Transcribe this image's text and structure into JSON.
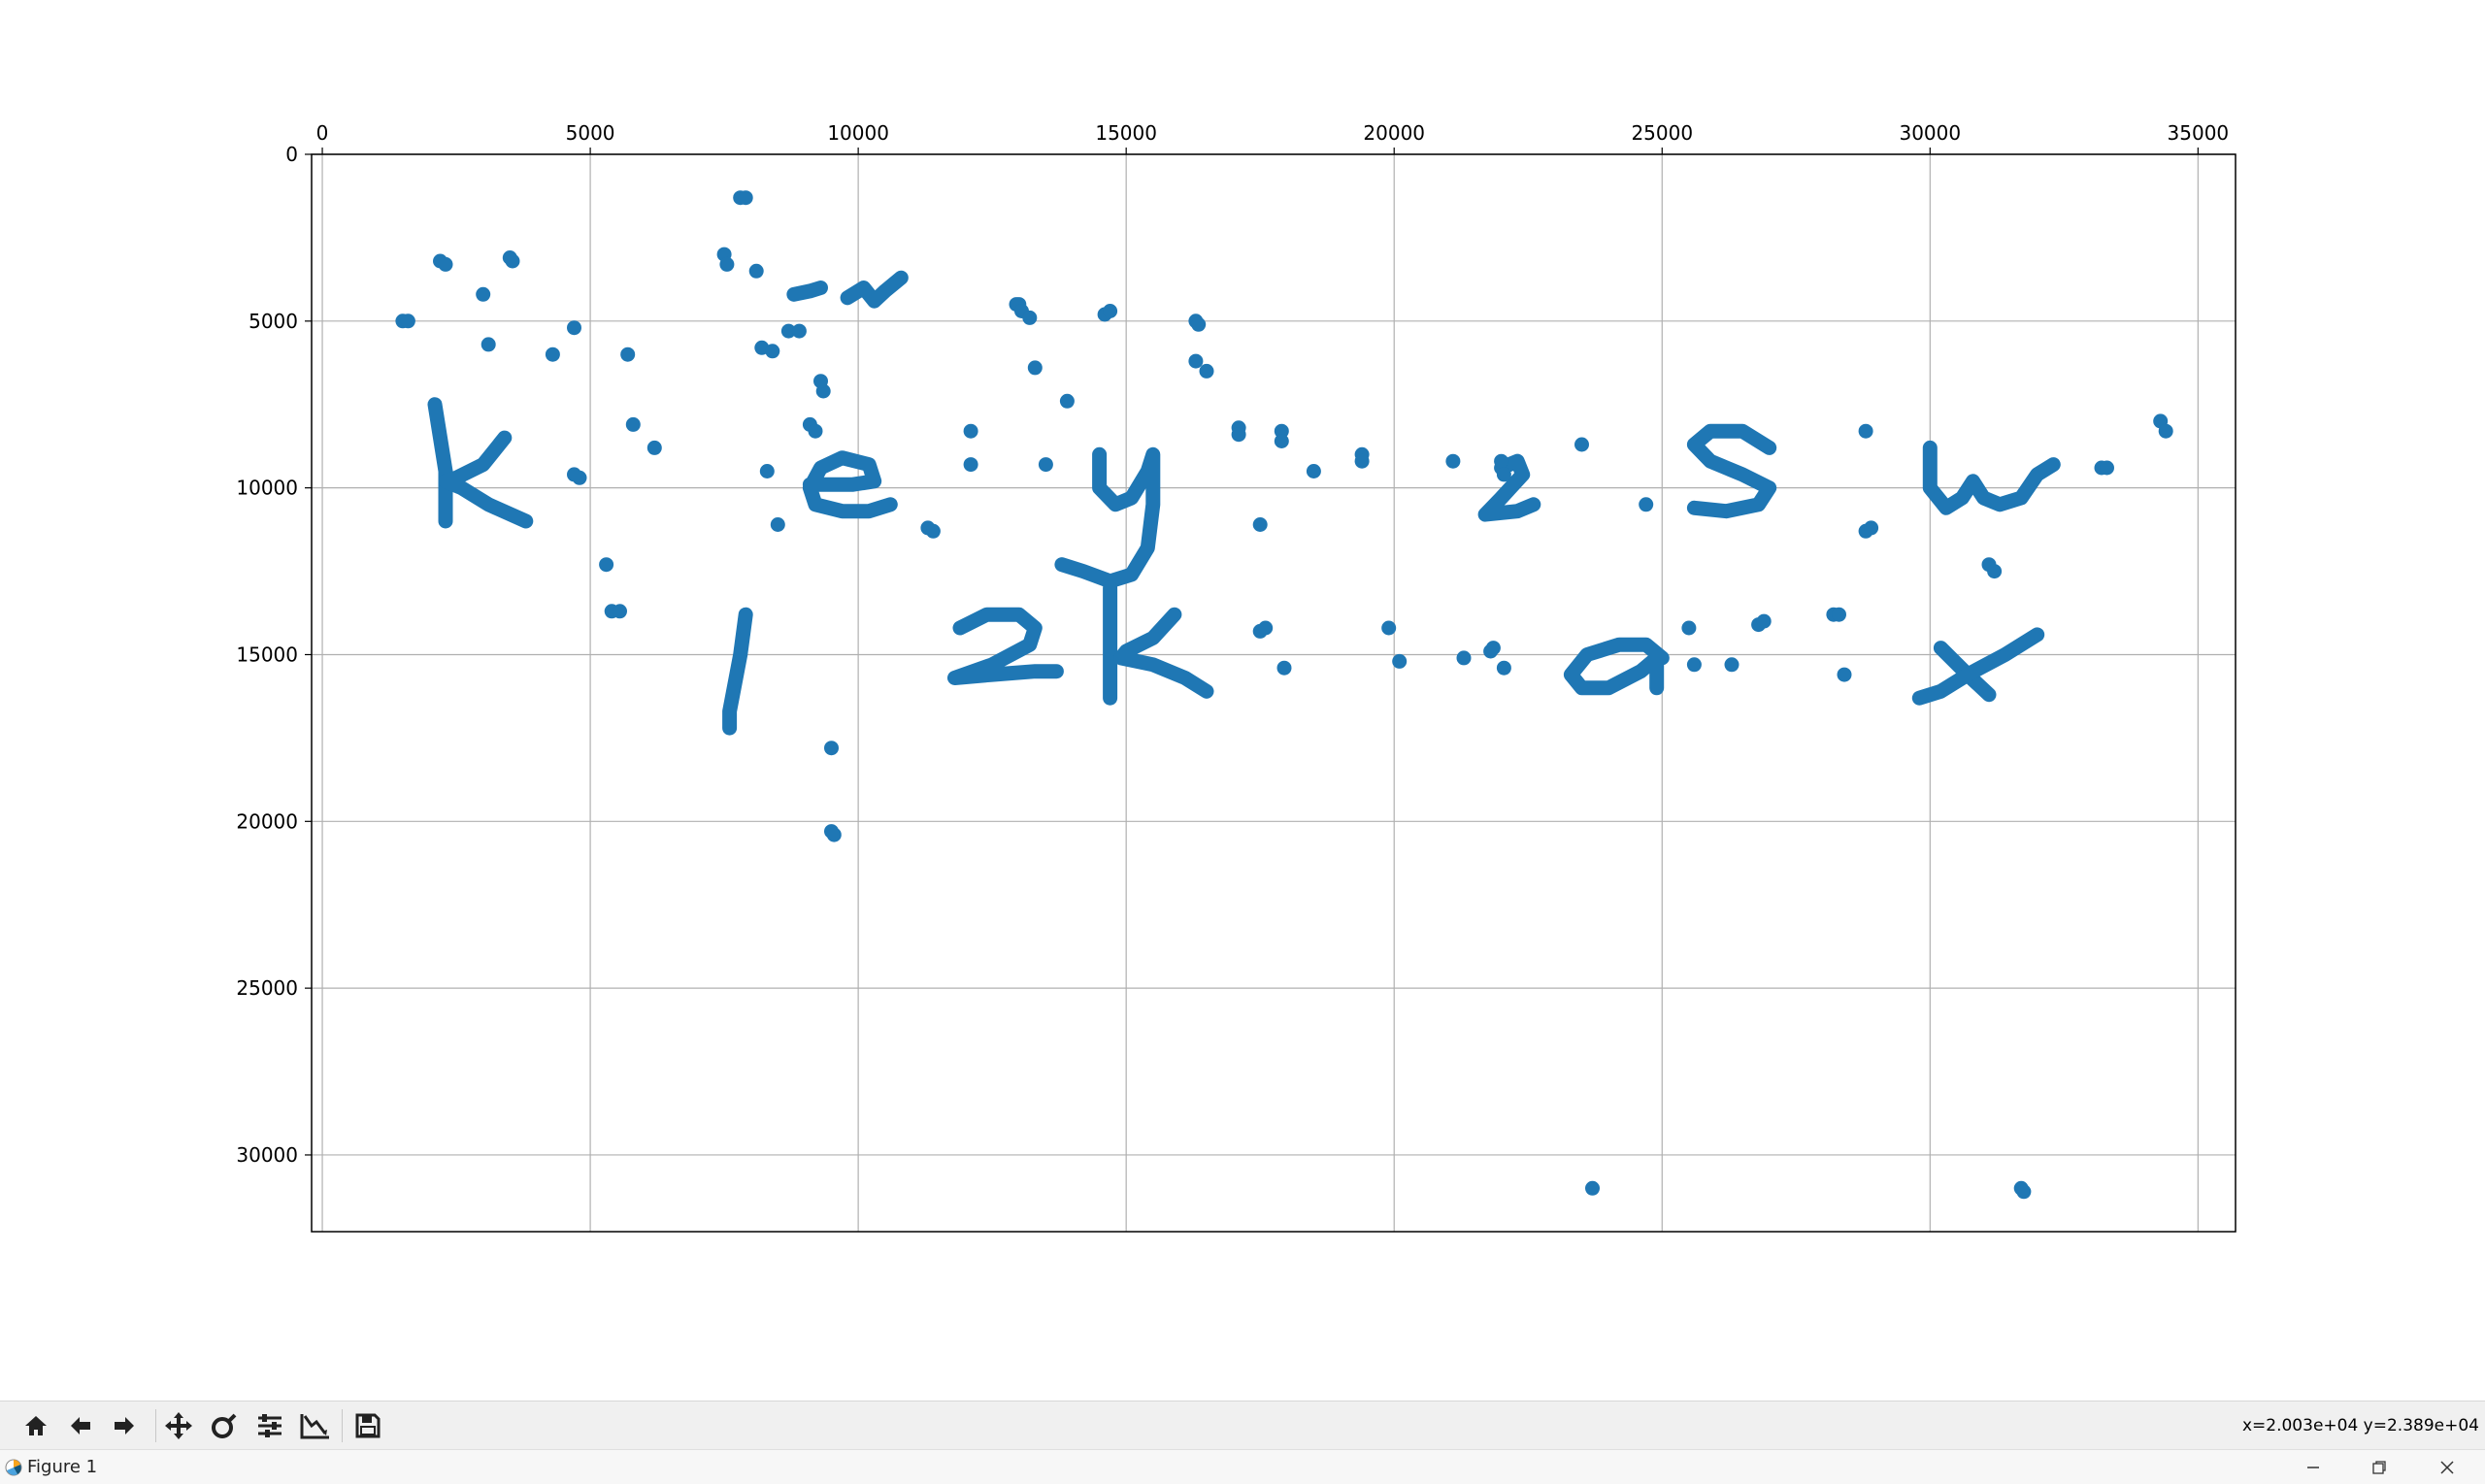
{
  "window": {
    "title": "Figure 1",
    "app_icon": "matplotlib-icon",
    "controls": {
      "minimize_icon": "minimize-icon",
      "restore_icon": "restore-icon",
      "close_icon": "close-icon"
    }
  },
  "toolbar": {
    "buttons": [
      {
        "name": "home-button",
        "icon": "home-icon"
      },
      {
        "name": "back-button",
        "icon": "arrow-left-icon"
      },
      {
        "name": "forward-button",
        "icon": "arrow-right-icon"
      },
      {
        "name": "pan-button",
        "icon": "move-icon"
      },
      {
        "name": "zoom-button",
        "icon": "zoom-icon"
      },
      {
        "name": "subplots-button",
        "icon": "sliders-icon"
      },
      {
        "name": "customize-button",
        "icon": "axes-edit-icon"
      },
      {
        "name": "save-button",
        "icon": "floppy-disk-icon"
      }
    ],
    "coordinates": "x=2.003e+04  y=2.389e+04"
  },
  "colors": {
    "marker": "#1f77b4",
    "grid": "#b0b0b0",
    "axes": "#000000",
    "toolbar_bg": "#f0f0f0"
  },
  "chart_data": {
    "type": "scatter",
    "title": "",
    "xlabel": "",
    "ylabel": "",
    "xlim": [
      -200,
      35700
    ],
    "ylim": [
      32300,
      0
    ],
    "y_inverted": true,
    "x_axis_position": "top",
    "grid": true,
    "xticks": [
      0,
      5000,
      10000,
      15000,
      20000,
      25000,
      30000,
      35000
    ],
    "xtick_labels": [
      "0",
      "5000",
      "10000",
      "15000",
      "20000",
      "25000",
      "30000",
      "35000"
    ],
    "yticks": [
      0,
      5000,
      10000,
      15000,
      20000,
      25000,
      30000
    ],
    "ytick_labels": [
      "0",
      "5000",
      "10000",
      "15000",
      "20000",
      "25000",
      "30000"
    ],
    "series": [
      {
        "marker_color": "#1f77b4",
        "points": [
          [
            1500,
            5000
          ],
          [
            1600,
            5000
          ],
          [
            2200,
            3200
          ],
          [
            2300,
            3300
          ],
          [
            3000,
            4200
          ],
          [
            3100,
            5700
          ],
          [
            3500,
            3100
          ],
          [
            3550,
            3200
          ],
          [
            4300,
            6000
          ],
          [
            4700,
            5200
          ],
          [
            4800,
            9700
          ],
          [
            4700,
            9600
          ],
          [
            5700,
            6000
          ],
          [
            5800,
            8100
          ],
          [
            6200,
            8800
          ],
          [
            5300,
            12300
          ],
          [
            5400,
            13700
          ],
          [
            5550,
            13700
          ],
          [
            7500,
            3000
          ],
          [
            7550,
            3300
          ],
          [
            7800,
            1300
          ],
          [
            7900,
            1300
          ],
          [
            8100,
            3500
          ],
          [
            8200,
            5800
          ],
          [
            8300,
            9500
          ],
          [
            8500,
            11100
          ],
          [
            8400,
            5900
          ],
          [
            8700,
            5300
          ],
          [
            8900,
            5300
          ],
          [
            9100,
            8100
          ],
          [
            9200,
            8300
          ],
          [
            9350,
            7100
          ],
          [
            9300,
            6800
          ],
          [
            9500,
            20300
          ],
          [
            9550,
            20400
          ],
          [
            9500,
            17800
          ],
          [
            11300,
            11200
          ],
          [
            11400,
            11300
          ],
          [
            12100,
            8300
          ],
          [
            12100,
            9300
          ],
          [
            12950,
            4500
          ],
          [
            13000,
            4500
          ],
          [
            13050,
            4700
          ],
          [
            13200,
            4900
          ],
          [
            13300,
            6400
          ],
          [
            13500,
            9300
          ],
          [
            13900,
            7400
          ],
          [
            14600,
            4800
          ],
          [
            14700,
            4700
          ],
          [
            16300,
            5000
          ],
          [
            16350,
            5100
          ],
          [
            16300,
            6200
          ],
          [
            16500,
            6500
          ],
          [
            17100,
            8200
          ],
          [
            17100,
            8400
          ],
          [
            17500,
            11100
          ],
          [
            17500,
            14300
          ],
          [
            17600,
            14200
          ],
          [
            17900,
            8300
          ],
          [
            17900,
            8600
          ],
          [
            17950,
            15400
          ],
          [
            18500,
            9500
          ],
          [
            19400,
            9000
          ],
          [
            19400,
            9200
          ],
          [
            19900,
            14200
          ],
          [
            20100,
            15200
          ],
          [
            21100,
            9200
          ],
          [
            21300,
            15100
          ],
          [
            21800,
            14900
          ],
          [
            21850,
            14800
          ],
          [
            22050,
            15400
          ],
          [
            22000,
            9200
          ],
          [
            22050,
            9600
          ],
          [
            23500,
            8700
          ],
          [
            23700,
            31000
          ],
          [
            24700,
            10500
          ],
          [
            25500,
            14200
          ],
          [
            25600,
            15300
          ],
          [
            26300,
            15300
          ],
          [
            26800,
            14100
          ],
          [
            26900,
            14000
          ],
          [
            28200,
            13800
          ],
          [
            28300,
            13800
          ],
          [
            28400,
            15600
          ],
          [
            28800,
            8300
          ],
          [
            28800,
            11300
          ],
          [
            28900,
            11200
          ],
          [
            31100,
            12300
          ],
          [
            31200,
            12500
          ],
          [
            33200,
            9400
          ],
          [
            33300,
            9400
          ],
          [
            34300,
            8000
          ],
          [
            34400,
            8300
          ],
          [
            31700,
            31000
          ],
          [
            31750,
            31100
          ]
        ]
      }
    ],
    "handwriting_strokes": [
      [
        [
          2100,
          7500
        ],
        [
          2200,
          8500
        ],
        [
          2300,
          9500
        ],
        [
          2300,
          10500
        ],
        [
          2300,
          11000
        ]
      ],
      [
        [
          3400,
          8500
        ],
        [
          3000,
          9300
        ],
        [
          2500,
          9700
        ],
        [
          2300,
          9800
        ],
        [
          2600,
          10000
        ],
        [
          3100,
          10500
        ],
        [
          3800,
          11000
        ]
      ],
      [
        [
          8800,
          4200
        ],
        [
          9100,
          4100
        ],
        [
          9300,
          4000
        ]
      ],
      [
        [
          9800,
          4300
        ],
        [
          10100,
          4000
        ],
        [
          10300,
          4400
        ],
        [
          10500,
          4100
        ],
        [
          10800,
          3700
        ]
      ],
      [
        [
          9100,
          9900
        ],
        [
          9900,
          9900
        ],
        [
          10300,
          9800
        ],
        [
          10200,
          9300
        ],
        [
          9700,
          9100
        ],
        [
          9300,
          9400
        ],
        [
          9100,
          10000
        ],
        [
          9200,
          10500
        ],
        [
          9700,
          10700
        ],
        [
          10200,
          10700
        ],
        [
          10600,
          10500
        ]
      ],
      [
        [
          14500,
          9000
        ],
        [
          14500,
          10000
        ],
        [
          14800,
          10500
        ],
        [
          15100,
          10300
        ],
        [
          15400,
          9500
        ],
        [
          15500,
          9000
        ],
        [
          15500,
          10500
        ],
        [
          15400,
          11800
        ],
        [
          15100,
          12600
        ],
        [
          14700,
          12800
        ],
        [
          14200,
          12500
        ],
        [
          13800,
          12300
        ]
      ],
      [
        [
          22000,
          9400
        ],
        [
          22300,
          9200
        ],
        [
          22400,
          9600
        ],
        [
          22000,
          10300
        ],
        [
          21700,
          10800
        ],
        [
          22300,
          10700
        ],
        [
          22600,
          10500
        ]
      ],
      [
        [
          27000,
          8800
        ],
        [
          26500,
          8300
        ],
        [
          25900,
          8300
        ],
        [
          25600,
          8700
        ],
        [
          25900,
          9200
        ],
        [
          26500,
          9600
        ],
        [
          27000,
          10000
        ],
        [
          26800,
          10500
        ],
        [
          26200,
          10700
        ],
        [
          25600,
          10600
        ]
      ],
      [
        [
          30000,
          8800
        ],
        [
          30000,
          10000
        ],
        [
          30300,
          10600
        ],
        [
          30600,
          10300
        ],
        [
          30800,
          9800
        ],
        [
          31000,
          10300
        ],
        [
          31300,
          10500
        ],
        [
          31700,
          10300
        ],
        [
          32000,
          9600
        ],
        [
          32300,
          9300
        ]
      ],
      [
        [
          7900,
          13800
        ],
        [
          7800,
          15000
        ],
        [
          7600,
          16700
        ],
        [
          7600,
          17200
        ]
      ],
      [
        [
          11900,
          14200
        ],
        [
          12400,
          13800
        ],
        [
          13000,
          13800
        ],
        [
          13300,
          14200
        ],
        [
          13200,
          14700
        ],
        [
          12500,
          15300
        ],
        [
          11800,
          15700
        ],
        [
          12500,
          15600
        ],
        [
          13300,
          15500
        ],
        [
          13700,
          15500
        ]
      ],
      [
        [
          14700,
          13000
        ],
        [
          14700,
          14800
        ],
        [
          14700,
          16300
        ]
      ],
      [
        [
          15900,
          13800
        ],
        [
          15500,
          14500
        ],
        [
          15000,
          14900
        ],
        [
          14900,
          15100
        ],
        [
          15500,
          15300
        ],
        [
          16100,
          15700
        ],
        [
          16500,
          16100
        ]
      ],
      [
        [
          25000,
          15100
        ],
        [
          24700,
          14700
        ],
        [
          24200,
          14700
        ],
        [
          23600,
          15000
        ],
        [
          23300,
          15600
        ],
        [
          23500,
          16000
        ],
        [
          24000,
          16000
        ],
        [
          24600,
          15500
        ],
        [
          24900,
          15100
        ],
        [
          24900,
          16000
        ]
      ],
      [
        [
          30200,
          14800
        ],
        [
          30700,
          15600
        ],
        [
          31100,
          16200
        ]
      ],
      [
        [
          32000,
          14400
        ],
        [
          31400,
          15000
        ],
        [
          30700,
          15600
        ],
        [
          30200,
          16100
        ],
        [
          29800,
          16300
        ]
      ]
    ]
  }
}
